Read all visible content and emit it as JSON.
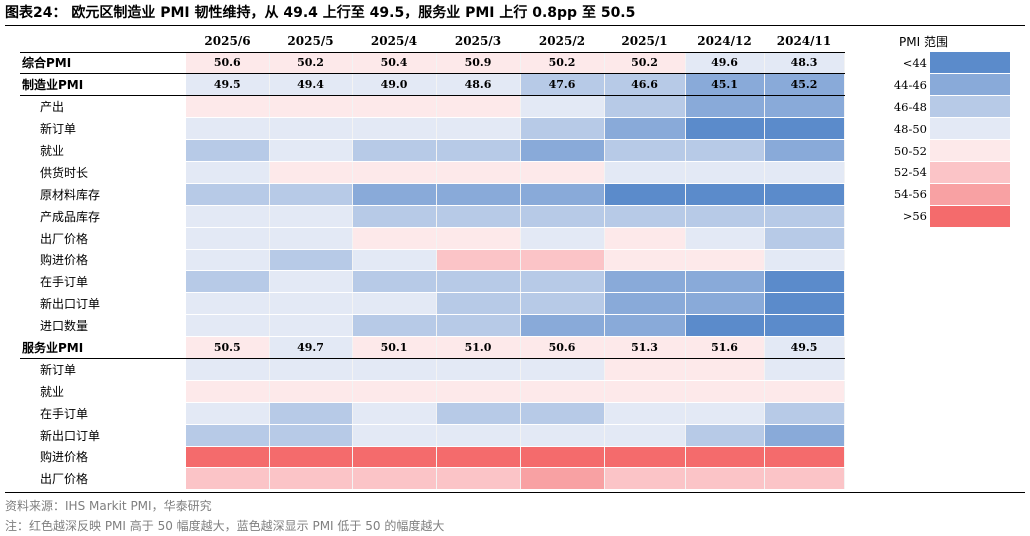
{
  "title": "图表24：   欧元区制造业 PMI 韧性维持，从 49.4 上行至 49.5，服务业 PMI 上行 0.8pp 至 50.5",
  "columns": [
    "2025/6",
    "2025/5",
    "2025/4",
    "2025/3",
    "2025/2",
    "2025/1",
    "2024/12",
    "2024/11"
  ],
  "colors": {
    "<44": "#5b8bcb",
    "44-46": "#89aad9",
    "46-48": "#b7cae7",
    "48-50": "#e3e9f5",
    "50-52": "#fde9ea",
    "52-54": "#fbc4c7",
    "54-56": "#f8a1a3",
    ">56": "#f46b6c"
  },
  "rows": [
    {
      "label": "综合PMI",
      "type": "main",
      "values": [
        "50.6",
        "50.2",
        "50.4",
        "50.9",
        "50.2",
        "50.2",
        "49.6",
        "48.3"
      ],
      "cells": [
        "50-52",
        "50-52",
        "50-52",
        "50-52",
        "50-52",
        "50-52",
        "48-50",
        "48-50"
      ]
    },
    {
      "label": "制造业PMI",
      "type": "main",
      "values": [
        "49.5",
        "49.4",
        "49.0",
        "48.6",
        "47.6",
        "46.6",
        "45.1",
        "45.2"
      ],
      "cells": [
        "48-50",
        "48-50",
        "48-50",
        "48-50",
        "46-48",
        "46-48",
        "44-46",
        "44-46"
      ]
    },
    {
      "label": "产出",
      "type": "sub",
      "cells": [
        "50-52",
        "50-52",
        "50-52",
        "50-52",
        "48-50",
        "46-48",
        "44-46",
        "44-46"
      ]
    },
    {
      "label": "新订单",
      "type": "sub",
      "cells": [
        "48-50",
        "48-50",
        "48-50",
        "48-50",
        "46-48",
        "44-46",
        "<44",
        "<44"
      ]
    },
    {
      "label": "就业",
      "type": "sub",
      "cells": [
        "46-48",
        "48-50",
        "46-48",
        "46-48",
        "44-46",
        "46-48",
        "46-48",
        "44-46"
      ]
    },
    {
      "label": "供货时长",
      "type": "sub",
      "cells": [
        "48-50",
        "50-52",
        "50-52",
        "50-52",
        "50-52",
        "48-50",
        "48-50",
        "48-50"
      ]
    },
    {
      "label": "原材料库存",
      "type": "sub",
      "cells": [
        "46-48",
        "46-48",
        "44-46",
        "44-46",
        "44-46",
        "<44",
        "<44",
        "<44"
      ]
    },
    {
      "label": "产成品库存",
      "type": "sub",
      "cells": [
        "48-50",
        "48-50",
        "46-48",
        "46-48",
        "46-48",
        "46-48",
        "46-48",
        "46-48"
      ]
    },
    {
      "label": "出厂价格",
      "type": "sub",
      "cells": [
        "48-50",
        "48-50",
        "50-52",
        "50-52",
        "48-50",
        "50-52",
        "48-50",
        "46-48"
      ]
    },
    {
      "label": "购进价格",
      "type": "sub",
      "cells": [
        "48-50",
        "46-48",
        "48-50",
        "52-54",
        "52-54",
        "50-52",
        "50-52",
        "48-50"
      ]
    },
    {
      "label": "在手订单",
      "type": "sub",
      "cells": [
        "46-48",
        "48-50",
        "46-48",
        "46-48",
        "46-48",
        "44-46",
        "44-46",
        "<44"
      ]
    },
    {
      "label": "新出口订单",
      "type": "sub",
      "cells": [
        "48-50",
        "48-50",
        "48-50",
        "46-48",
        "46-48",
        "44-46",
        "44-46",
        "<44"
      ]
    },
    {
      "label": "进口数量",
      "type": "sub",
      "cells": [
        "48-50",
        "48-50",
        "46-48",
        "46-48",
        "44-46",
        "44-46",
        "<44",
        "<44"
      ]
    },
    {
      "label": "服务业PMI",
      "type": "main",
      "values": [
        "50.5",
        "49.7",
        "50.1",
        "51.0",
        "50.6",
        "51.3",
        "51.6",
        "49.5"
      ],
      "cells": [
        "50-52",
        "48-50",
        "50-52",
        "50-52",
        "50-52",
        "50-52",
        "50-52",
        "48-50"
      ]
    },
    {
      "label": "新订单",
      "type": "sub",
      "cells": [
        "48-50",
        "48-50",
        "48-50",
        "48-50",
        "48-50",
        "50-52",
        "50-52",
        "48-50"
      ]
    },
    {
      "label": "就业",
      "type": "sub",
      "cells": [
        "50-52",
        "50-52",
        "50-52",
        "50-52",
        "50-52",
        "50-52",
        "50-52",
        "50-52"
      ]
    },
    {
      "label": "在手订单",
      "type": "sub",
      "cells": [
        "48-50",
        "46-48",
        "48-50",
        "46-48",
        "46-48",
        "48-50",
        "48-50",
        "46-48"
      ]
    },
    {
      "label": "新出口订单",
      "type": "sub",
      "cells": [
        "46-48",
        "46-48",
        "48-50",
        "48-50",
        "48-50",
        "48-50",
        "46-48",
        "44-46"
      ]
    },
    {
      "label": "购进价格",
      "type": "sub",
      "cells": [
        ">56",
        ">56",
        ">56",
        ">56",
        ">56",
        ">56",
        ">56",
        ">56"
      ]
    },
    {
      "label": "出厂价格",
      "type": "sub",
      "cells": [
        "52-54",
        "52-54",
        "52-54",
        "52-54",
        "54-56",
        "52-54",
        "52-54",
        "52-54"
      ]
    }
  ],
  "legend": {
    "title": "PMI 范围",
    "items": [
      "<44",
      "44-46",
      "46-48",
      "48-50",
      "50-52",
      "52-54",
      "54-56",
      ">56"
    ]
  },
  "footer": {
    "source": "资料来源：IHS Markit PMI，华泰研究",
    "note": "注：红色越深反映 PMI 高于 50 幅度越大，蓝色越深显示 PMI 低于 50 的幅度越大"
  }
}
